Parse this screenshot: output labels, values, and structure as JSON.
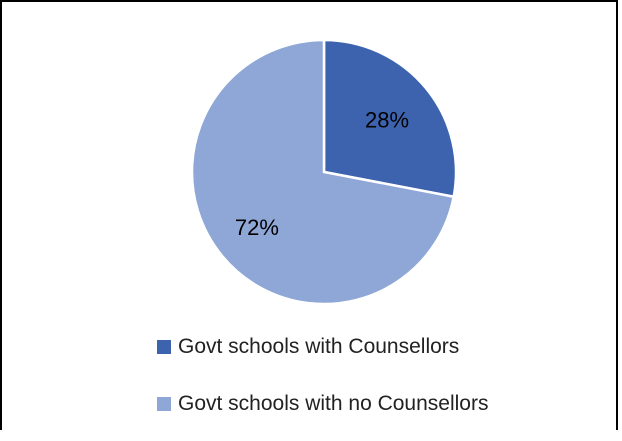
{
  "chart_data": {
    "type": "pie",
    "categories": [
      "Govt schools with Counsellors",
      "Govt schools with no Counsellors"
    ],
    "values": [
      28,
      72
    ],
    "labels": [
      "28%",
      "72%"
    ],
    "colors": [
      "#3d63af",
      "#8fa7d6"
    ],
    "legend_position": "bottom"
  },
  "legend": {
    "items": [
      {
        "label": "Govt schools with Counsellors",
        "color": "#3d63af"
      },
      {
        "label": "Govt schools with no Counsellors",
        "color": "#8fa7d6"
      }
    ]
  }
}
